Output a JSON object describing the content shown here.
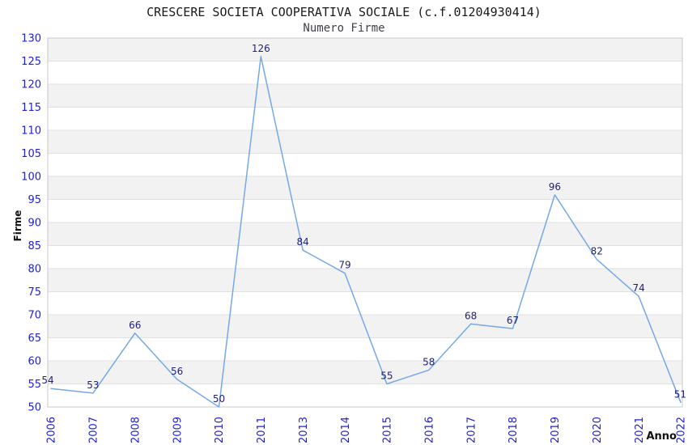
{
  "chart_data": {
    "type": "line",
    "title": "CRESCERE SOCIETA COOPERATIVA SOCIALE (c.f.01204930414)",
    "subtitle": "Numero Firme",
    "categories": [
      "2006",
      "2007",
      "2008",
      "2009",
      "2010",
      "2011",
      "2013",
      "2014",
      "2015",
      "2016",
      "2017",
      "2018",
      "2019",
      "2020",
      "2021",
      "2022"
    ],
    "values": [
      54,
      53,
      66,
      56,
      50,
      126,
      84,
      79,
      55,
      58,
      68,
      67,
      96,
      82,
      74,
      51
    ],
    "xlabel": "Anno",
    "ylabel": "Firme",
    "ylim": [
      50,
      130
    ],
    "ytick_step": 5,
    "yticks": [
      50,
      55,
      60,
      65,
      70,
      75,
      80,
      85,
      90,
      95,
      100,
      105,
      110,
      115,
      120,
      125,
      130
    ],
    "grid": "horizontal-gridlines-with-alternating-bands",
    "legend": "none",
    "markers": "none",
    "data_labels": "shown-above-points",
    "colors": {
      "line": "#74a9e4",
      "value_labels": "#1f1f7a",
      "axis_ticks": "#2222cc",
      "axis_titles": "#111111",
      "band_shaded": "#f2f2f2",
      "band_plain": "#ffffff",
      "gridline": "#e0e0e0",
      "plot_border": "#c8c8c8",
      "title_text": "#1a1a1a",
      "subtitle_text": "#40404f",
      "background": "#ffffff"
    }
  }
}
